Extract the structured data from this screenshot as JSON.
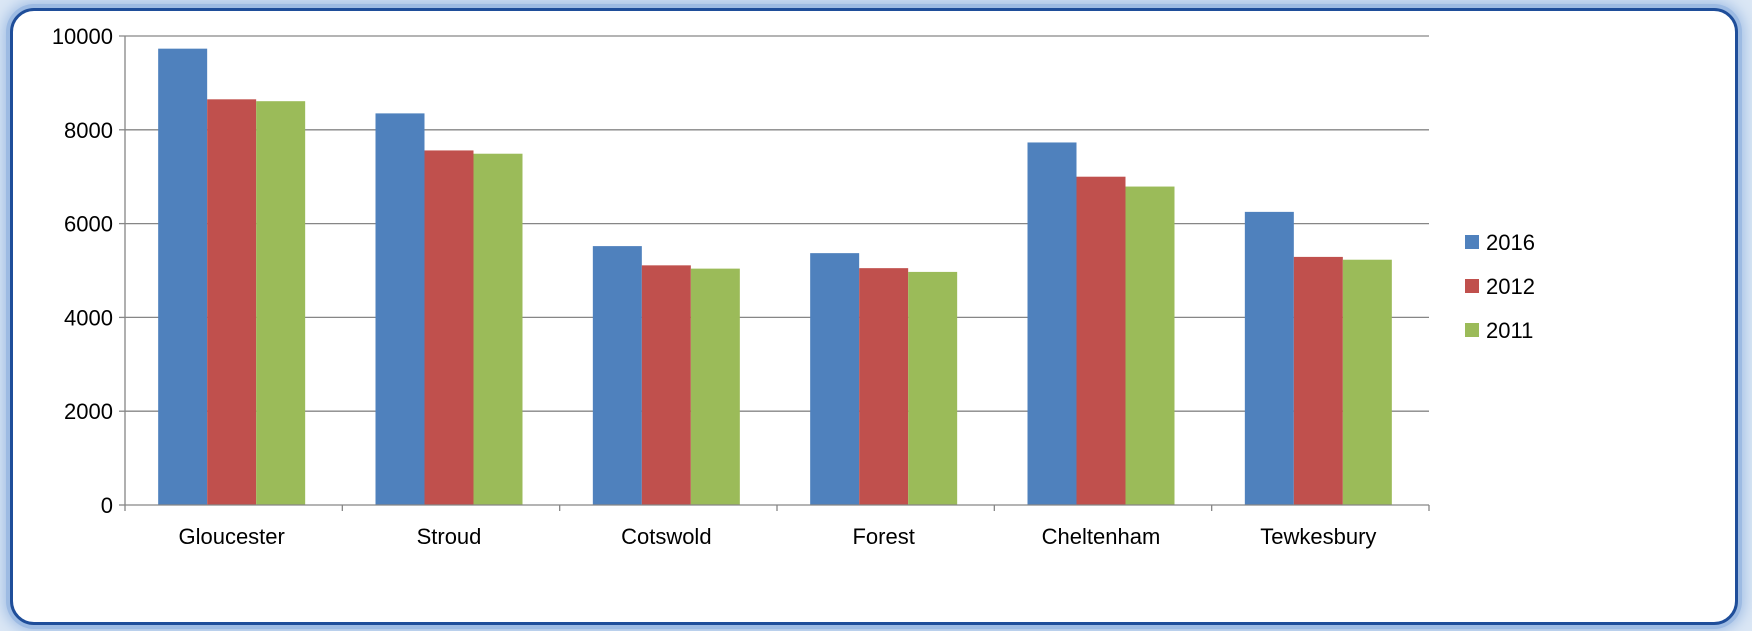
{
  "chart_data": {
    "type": "bar",
    "title": "",
    "xlabel": "",
    "ylabel": "",
    "ylim": [
      0,
      10000
    ],
    "yticks": [
      0,
      2000,
      4000,
      6000,
      8000,
      10000
    ],
    "grid": true,
    "legend_position": "right",
    "categories": [
      "Gloucester",
      "Stroud",
      "Cotswold",
      "Forest",
      "Cheltenham",
      "Tewkesbury"
    ],
    "series": [
      {
        "name": "2016",
        "color": "#4f81bd",
        "values": [
          9730,
          8350,
          5520,
          5370,
          7730,
          6250
        ]
      },
      {
        "name": "2012",
        "color": "#c0504d",
        "values": [
          8650,
          7560,
          5110,
          5050,
          7000,
          5290
        ]
      },
      {
        "name": "2011",
        "color": "#9bbb59",
        "values": [
          8610,
          7490,
          5040,
          4970,
          6790,
          5230
        ]
      }
    ]
  }
}
